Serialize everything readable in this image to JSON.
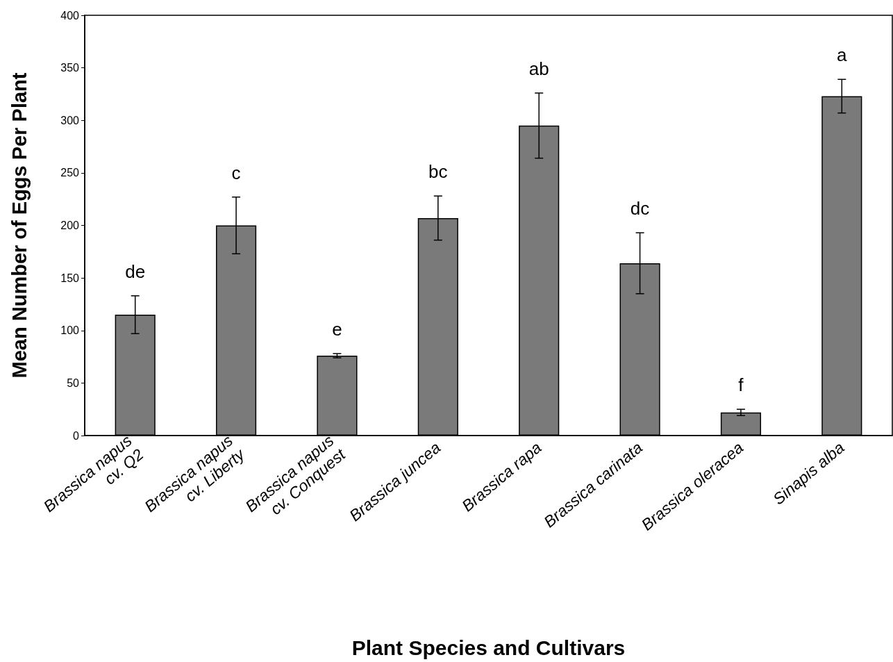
{
  "chart_data": {
    "type": "bar",
    "xlabel": "Plant Species and Cultivars",
    "ylabel": "Mean Number of Eggs Per Plant",
    "categories": [
      "Brassica napus\ncv. Q2",
      "Brassica napus\ncv. Liberty",
      "Brassica napus\ncv. Conquest",
      "Brassica juncea",
      "Brassica rapa",
      "Brassica carinata",
      "Brassica oleracea",
      "Sinapis alba"
    ],
    "values": [
      115,
      200,
      76,
      207,
      295,
      164,
      22,
      323
    ],
    "errors": [
      18,
      27,
      2,
      21,
      31,
      29,
      3,
      16
    ],
    "color": "#7a7a7a",
    "ylim": [
      0,
      400
    ],
    "yticks": [
      0,
      50,
      100,
      150,
      200,
      250,
      300,
      350,
      400
    ],
    "grid": false,
    "annotations": [
      "de",
      "c",
      "e",
      "bc",
      "ab",
      "dc",
      "f",
      "a"
    ]
  }
}
